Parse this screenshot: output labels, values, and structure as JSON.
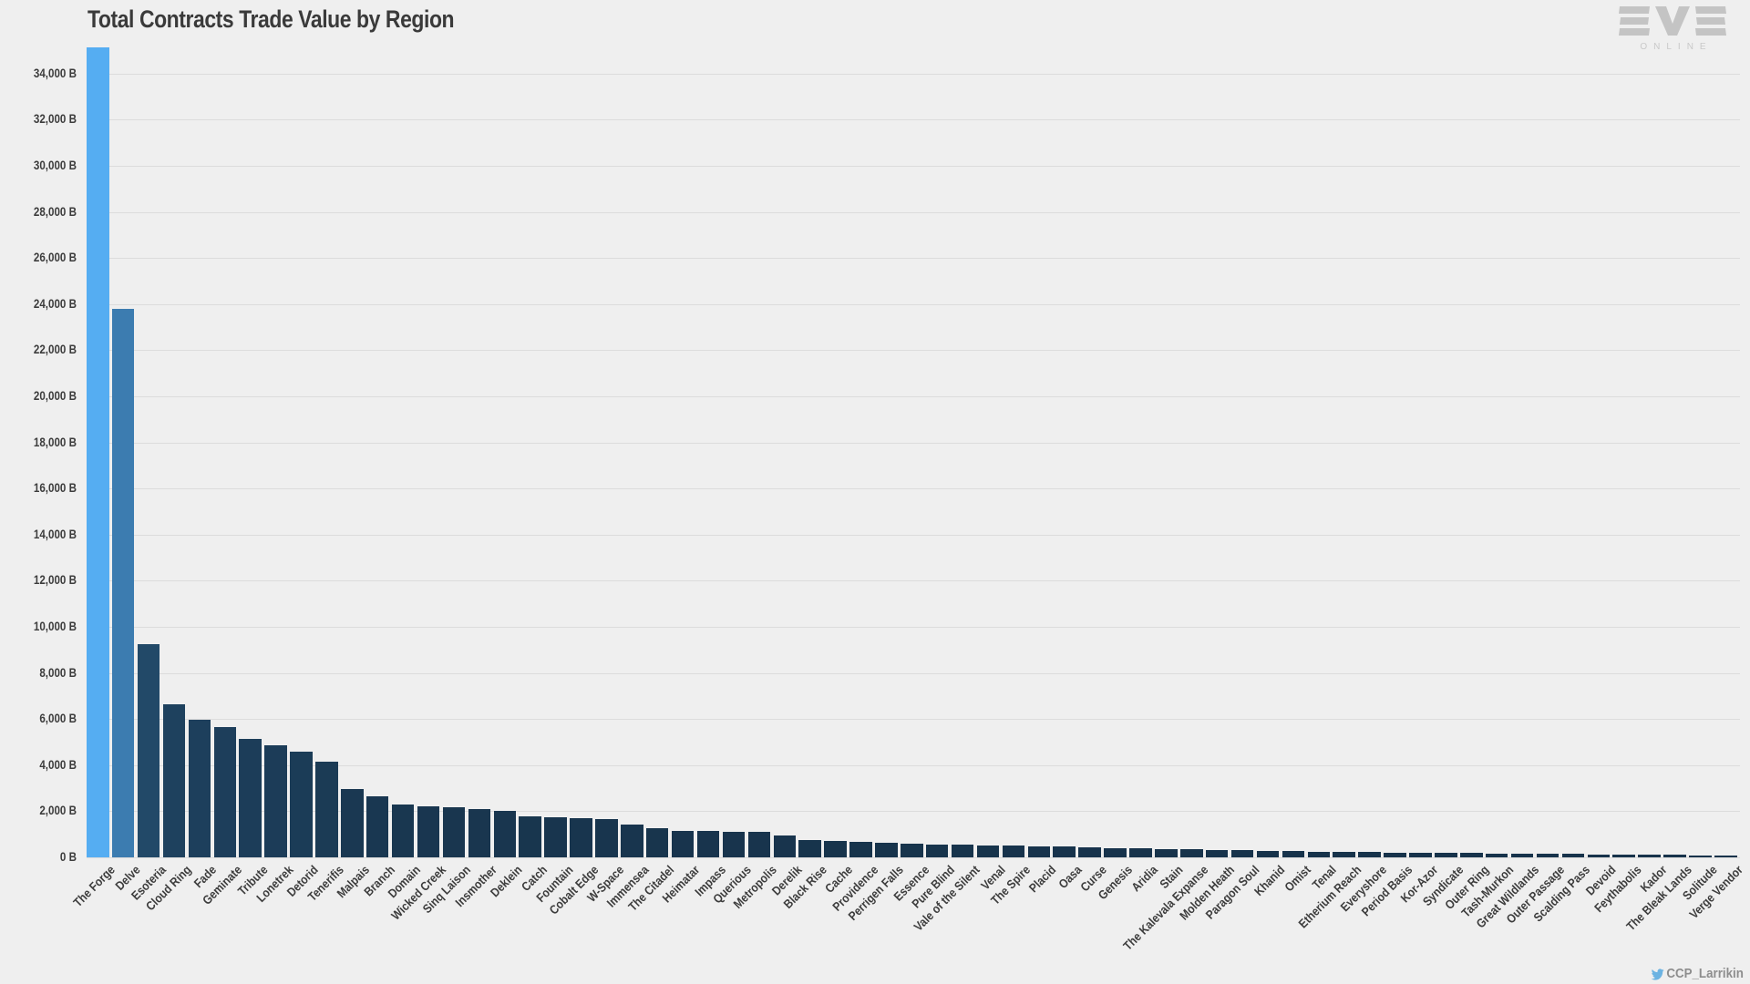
{
  "title": "Total Contracts Trade Value by Region",
  "branding": {
    "name": "EVE",
    "online_label": "ONLINE"
  },
  "attribution": {
    "icon": "twitter-bird-icon",
    "handle": "CCP_Larrikin"
  },
  "colors": {
    "background": "#efefef",
    "gridline": "#dcdcdc",
    "text": "#3c3c3c",
    "title_text": "#3a3a3a",
    "bar_scale_low": "#17334b",
    "bar_scale_high": "#55adf2",
    "logo_gray": "#c4c4c4",
    "online_gray": "#c9c9c9",
    "handle_gray": "#8d8d8d",
    "twitter_blue": "#6cb3e2"
  },
  "chart_data": {
    "type": "bar",
    "title": "Total Contracts Trade Value by Region",
    "xlabel": "",
    "ylabel": "",
    "y_tick_step": 2000,
    "y_max_tick": 34000,
    "y_tick_suffix": " B",
    "ylim": [
      0,
      35500
    ],
    "grid": true,
    "legend": "none",
    "color_scale": {
      "low": "#17334b",
      "high": "#55adf2",
      "exponent": 1.3
    },
    "categories": [
      "The Forge",
      "Delve",
      "Esoteria",
      "Cloud Ring",
      "Fade",
      "Geminate",
      "Tribute",
      "Lonetrek",
      "Detorid",
      "Tenerifis",
      "Malpais",
      "Branch",
      "Domain",
      "Wicked Creek",
      "Sinq Laison",
      "Insmother",
      "Deklein",
      "Catch",
      "Fountain",
      "Cobalt Edge",
      "W-Space",
      "Immensea",
      "The Citadel",
      "Heimatar",
      "Impass",
      "Querious",
      "Metropolis",
      "Derelik",
      "Black Rise",
      "Cache",
      "Providence",
      "Perrigen Falls",
      "Essence",
      "Pure Blind",
      "Vale of the Silent",
      "Venal",
      "The Spire",
      "Placid",
      "Oasa",
      "Curse",
      "Genesis",
      "Aridia",
      "Stain",
      "The Kalevala Expanse",
      "Molden Heath",
      "Paragon Soul",
      "Khanid",
      "Omist",
      "Tenal",
      "Etherium Reach",
      "Everyshore",
      "Period Basis",
      "Kor-Azor",
      "Syndicate",
      "Outer Ring",
      "Tash-Murkon",
      "Great Wildlands",
      "Outer Passage",
      "Scalding Pass",
      "Devoid",
      "Feythabolis",
      "Kador",
      "The Bleak Lands",
      "Solitude",
      "Verge Vendor"
    ],
    "values": [
      35150,
      23800,
      9250,
      6650,
      5950,
      5650,
      5150,
      4850,
      4600,
      4150,
      2980,
      2640,
      2310,
      2220,
      2170,
      2080,
      2010,
      1790,
      1730,
      1690,
      1660,
      1430,
      1260,
      1160,
      1140,
      1120,
      1090,
      960,
      740,
      720,
      660,
      645,
      580,
      560,
      545,
      530,
      510,
      490,
      455,
      430,
      410,
      390,
      360,
      345,
      320,
      305,
      285,
      260,
      245,
      230,
      220,
      205,
      195,
      185,
      178,
      170,
      160,
      150,
      142,
      133,
      125,
      115,
      105,
      92,
      80
    ]
  }
}
